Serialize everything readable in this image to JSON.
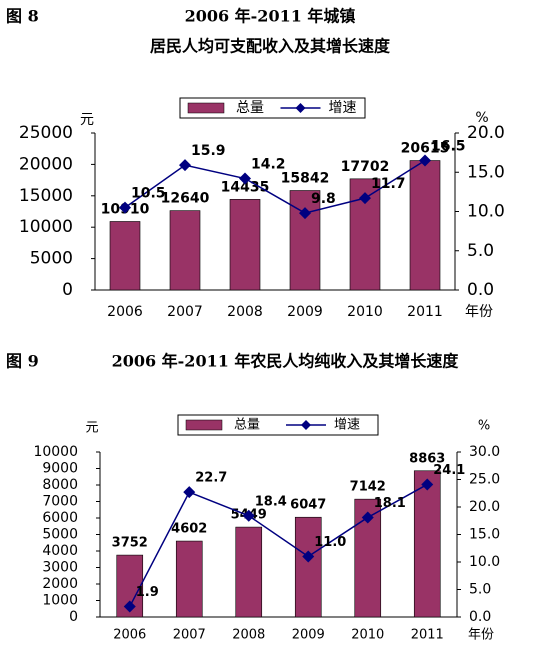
{
  "chart_data": [
    {
      "type": "bar_line",
      "figure_label": "图 8",
      "title_lines": [
        "2006 年-2011 年城镇",
        "居民人均可支配收入及其增长速度"
      ],
      "y_label": "元",
      "y2_label": "%",
      "x_label": "年份",
      "categories": [
        "2006",
        "2007",
        "2008",
        "2009",
        "2010",
        "2011"
      ],
      "series": [
        {
          "name": "总量",
          "type": "bar",
          "color": "#993366",
          "values": [
            10910,
            12640,
            14435,
            15842,
            17702,
            20615
          ]
        },
        {
          "name": "增速",
          "type": "line",
          "axis": "y2",
          "color": "#000080",
          "values": [
            10.5,
            15.9,
            14.2,
            9.8,
            11.7,
            16.5
          ]
        }
      ],
      "ylim": [
        0,
        25000
      ],
      "yticks": [
        0,
        5000,
        10000,
        15000,
        20000,
        25000
      ],
      "y2lim": [
        0,
        20
      ],
      "y2ticks": [
        {
          "value": 0,
          "label": "0.0"
        },
        {
          "value": 5,
          "label": "5.0"
        },
        {
          "value": 10,
          "label": "10.0"
        },
        {
          "value": 15,
          "label": "15.0"
        },
        {
          "value": 20,
          "label": "20.0"
        }
      ]
    },
    {
      "type": "bar_line",
      "figure_label": "图 9",
      "title_lines": [
        "2006 年-2011 年农民人均纯收入及其增长速度"
      ],
      "y_label": "元",
      "y2_label": "%",
      "x_label": "年份",
      "categories": [
        "2006",
        "2007",
        "2008",
        "2009",
        "2010",
        "2011"
      ],
      "series": [
        {
          "name": "总量",
          "type": "bar",
          "color": "#993366",
          "values": [
            3752,
            4602,
            5449,
            6047,
            7142,
            8863
          ]
        },
        {
          "name": "增速",
          "type": "line",
          "axis": "y2",
          "color": "#000080",
          "values": [
            1.9,
            22.7,
            18.4,
            11.0,
            18.1,
            24.1
          ],
          "value_labels": [
            "1.9",
            "22.7",
            "18.4",
            "11.0",
            "18.1",
            "24.1"
          ]
        }
      ],
      "ylim": [
        0,
        10000
      ],
      "yticks": [
        0,
        1000,
        2000,
        3000,
        4000,
        5000,
        6000,
        7000,
        8000,
        9000,
        10000
      ],
      "y2lim": [
        0,
        30
      ],
      "y2ticks": [
        {
          "value": 0,
          "label": "0.0"
        },
        {
          "value": 5,
          "label": "5.0"
        },
        {
          "value": 10,
          "label": "10.0"
        },
        {
          "value": 15,
          "label": "15.0"
        },
        {
          "value": 20,
          "label": "20.0"
        },
        {
          "value": 25,
          "label": "25.0"
        },
        {
          "value": 30,
          "label": "30.0"
        }
      ]
    }
  ]
}
